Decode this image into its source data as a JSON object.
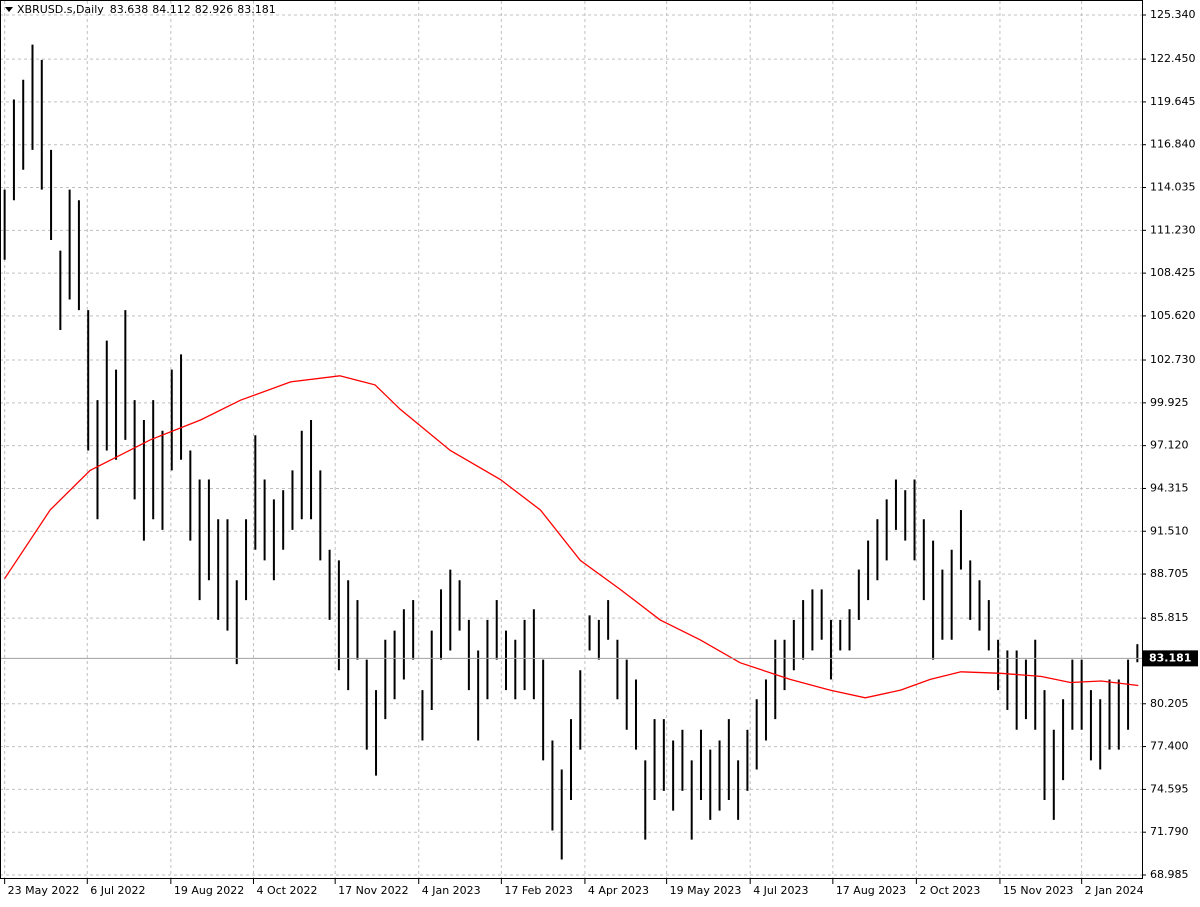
{
  "chart_data": {
    "type": "ohlc",
    "symbol": "XBRUSD.s,Daily",
    "ohlc": [
      83.638,
      84.112,
      82.926,
      83.181
    ],
    "last_price": 83.181,
    "color": "#000000",
    "ylim": [
      68.985,
      125.34
    ],
    "yticks": [
      {
        "value": 125.34,
        "label": "125.340"
      },
      {
        "value": 122.45,
        "label": "122.450"
      },
      119.645,
      {
        "value": 116.84,
        "label": "116.840"
      },
      114.035,
      {
        "value": 111.23,
        "label": "111.230"
      },
      108.425,
      {
        "value": 105.62,
        "label": "105.620"
      },
      {
        "value": 102.73,
        "label": "102.730"
      },
      99.925,
      {
        "value": 97.12,
        "label": "97.120"
      },
      94.315,
      {
        "value": 91.51,
        "label": "91.510"
      },
      88.705,
      85.815,
      80.205,
      {
        "value": 77.4,
        "label": "77.400"
      },
      74.595,
      {
        "value": 71.79,
        "label": "71.790"
      },
      68.985
    ],
    "xlim": [
      -0.5,
      122.5
    ],
    "xticks": [
      {
        "value": 0,
        "label": "23 May 2022"
      },
      {
        "value": 8.9,
        "label": "6 Jul 2022"
      },
      {
        "value": 17.9,
        "label": "19 Aug 2022"
      },
      {
        "value": 26.8,
        "label": "4 Oct 2022"
      },
      {
        "value": 35.6,
        "label": "17 Nov 2022"
      },
      {
        "value": 44.6,
        "label": "4 Jan 2023"
      },
      {
        "value": 53.5,
        "label": "17 Feb 2023"
      },
      {
        "value": 62.5,
        "label": "4 Apr 2023"
      },
      {
        "value": 71.3,
        "label": "19 May 2023"
      },
      {
        "value": 80.3,
        "label": "4 Jul 2023"
      },
      {
        "value": 89.2,
        "label": "17 Aug 2023"
      },
      {
        "value": 98.2,
        "label": "2 Oct 2023"
      },
      {
        "value": 107.2,
        "label": "15 Nov 2023"
      },
      {
        "value": 116.0,
        "label": "2 Jan 2024"
      }
    ],
    "grid": true,
    "low": [
      109.3,
      113.2,
      115.2,
      116.5,
      113.9,
      110.6,
      104.7,
      106.7,
      106.0,
      96.8,
      92.3,
      96.8,
      96.2,
      97.5,
      93.6,
      90.9,
      92.3,
      91.6,
      95.5,
      96.2,
      90.9,
      87.0,
      88.3,
      85.7,
      85.0,
      82.8,
      87.0,
      90.3,
      89.6,
      88.3,
      90.3,
      91.6,
      92.3,
      92.3,
      89.6,
      85.7,
      82.4,
      81.1,
      83.1,
      77.2,
      75.5,
      79.2,
      80.5,
      81.8,
      83.1,
      77.8,
      79.8,
      83.1,
      83.7,
      85.0,
      81.1,
      77.8,
      80.5,
      83.1,
      81.1,
      80.5,
      81.1,
      80.5,
      76.5,
      71.9,
      70.0,
      73.9,
      77.2,
      83.7,
      83.1,
      84.4,
      80.5,
      78.5,
      77.2,
      71.3,
      73.9,
      74.5,
      73.2,
      74.5,
      71.3,
      73.9,
      72.6,
      73.2,
      73.9,
      72.6,
      74.5,
      75.9,
      77.8,
      79.2,
      81.1,
      82.4,
      83.1,
      83.7,
      84.4,
      81.8,
      83.7,
      83.7,
      85.7,
      87.0,
      88.3,
      89.6,
      91.6,
      90.9,
      89.6,
      87.0,
      83.1,
      84.4,
      84.4,
      89.0,
      85.7,
      85.0,
      83.7,
      81.1,
      79.8,
      78.5,
      79.2,
      78.5,
      73.9,
      72.6,
      75.2,
      78.5,
      78.5,
      76.5,
      75.9,
      77.2,
      77.2,
      78.5,
      82.926
    ],
    "high": [
      113.9,
      119.8,
      121.1,
      123.4,
      122.4,
      116.5,
      109.9,
      113.9,
      113.2,
      106.0,
      100.1,
      104.0,
      102.1,
      106.0,
      100.1,
      98.8,
      100.1,
      98.1,
      102.1,
      103.1,
      96.8,
      94.9,
      94.9,
      92.3,
      92.3,
      88.3,
      92.3,
      97.8,
      94.9,
      93.6,
      94.2,
      95.5,
      98.1,
      98.8,
      95.5,
      90.3,
      89.6,
      88.3,
      87.0,
      83.1,
      81.1,
      84.4,
      85.0,
      86.4,
      87.0,
      81.1,
      85.0,
      87.7,
      89.0,
      88.3,
      85.7,
      83.7,
      85.7,
      87.0,
      85.0,
      84.4,
      85.7,
      86.4,
      83.1,
      77.8,
      75.9,
      79.2,
      82.4,
      86.0,
      85.7,
      87.0,
      84.4,
      83.1,
      81.8,
      76.5,
      79.2,
      79.2,
      77.8,
      78.5,
      76.5,
      78.5,
      77.2,
      77.8,
      79.2,
      76.5,
      78.5,
      80.5,
      81.8,
      84.4,
      84.4,
      85.7,
      87.0,
      87.7,
      87.7,
      85.7,
      85.7,
      86.4,
      89.0,
      90.9,
      92.3,
      93.6,
      94.9,
      94.2,
      94.9,
      92.3,
      90.9,
      89.0,
      90.3,
      92.9,
      89.6,
      88.3,
      87.0,
      84.4,
      83.7,
      83.7,
      83.1,
      84.4,
      81.1,
      78.5,
      80.5,
      83.1,
      83.1,
      81.1,
      80.5,
      81.8,
      81.8,
      83.1,
      84.112
    ],
    "ma": {
      "color": "#ff0000",
      "x": [
        0,
        4.9,
        9.2,
        15.7,
        21.1,
        25.4,
        30.8,
        36.1,
        39.9,
        42.6,
        48,
        53.4,
        57.7,
        62,
        66.3,
        70.6,
        74.9,
        79.2,
        84.6,
        88.9,
        92.7,
        96.5,
        99.7,
        103,
        107.3,
        111.6,
        114.8,
        118.1,
        122.1
      ],
      "values": [
        88.4,
        92.9,
        95.5,
        97.5,
        98.8,
        100.1,
        101.3,
        101.7,
        101.1,
        99.5,
        96.8,
        94.9,
        92.9,
        89.6,
        87.7,
        85.7,
        84.4,
        82.9,
        81.8,
        81.1,
        80.6,
        81.1,
        81.8,
        82.3,
        82.2,
        82.0,
        81.6,
        81.7,
        81.4
      ]
    }
  }
}
